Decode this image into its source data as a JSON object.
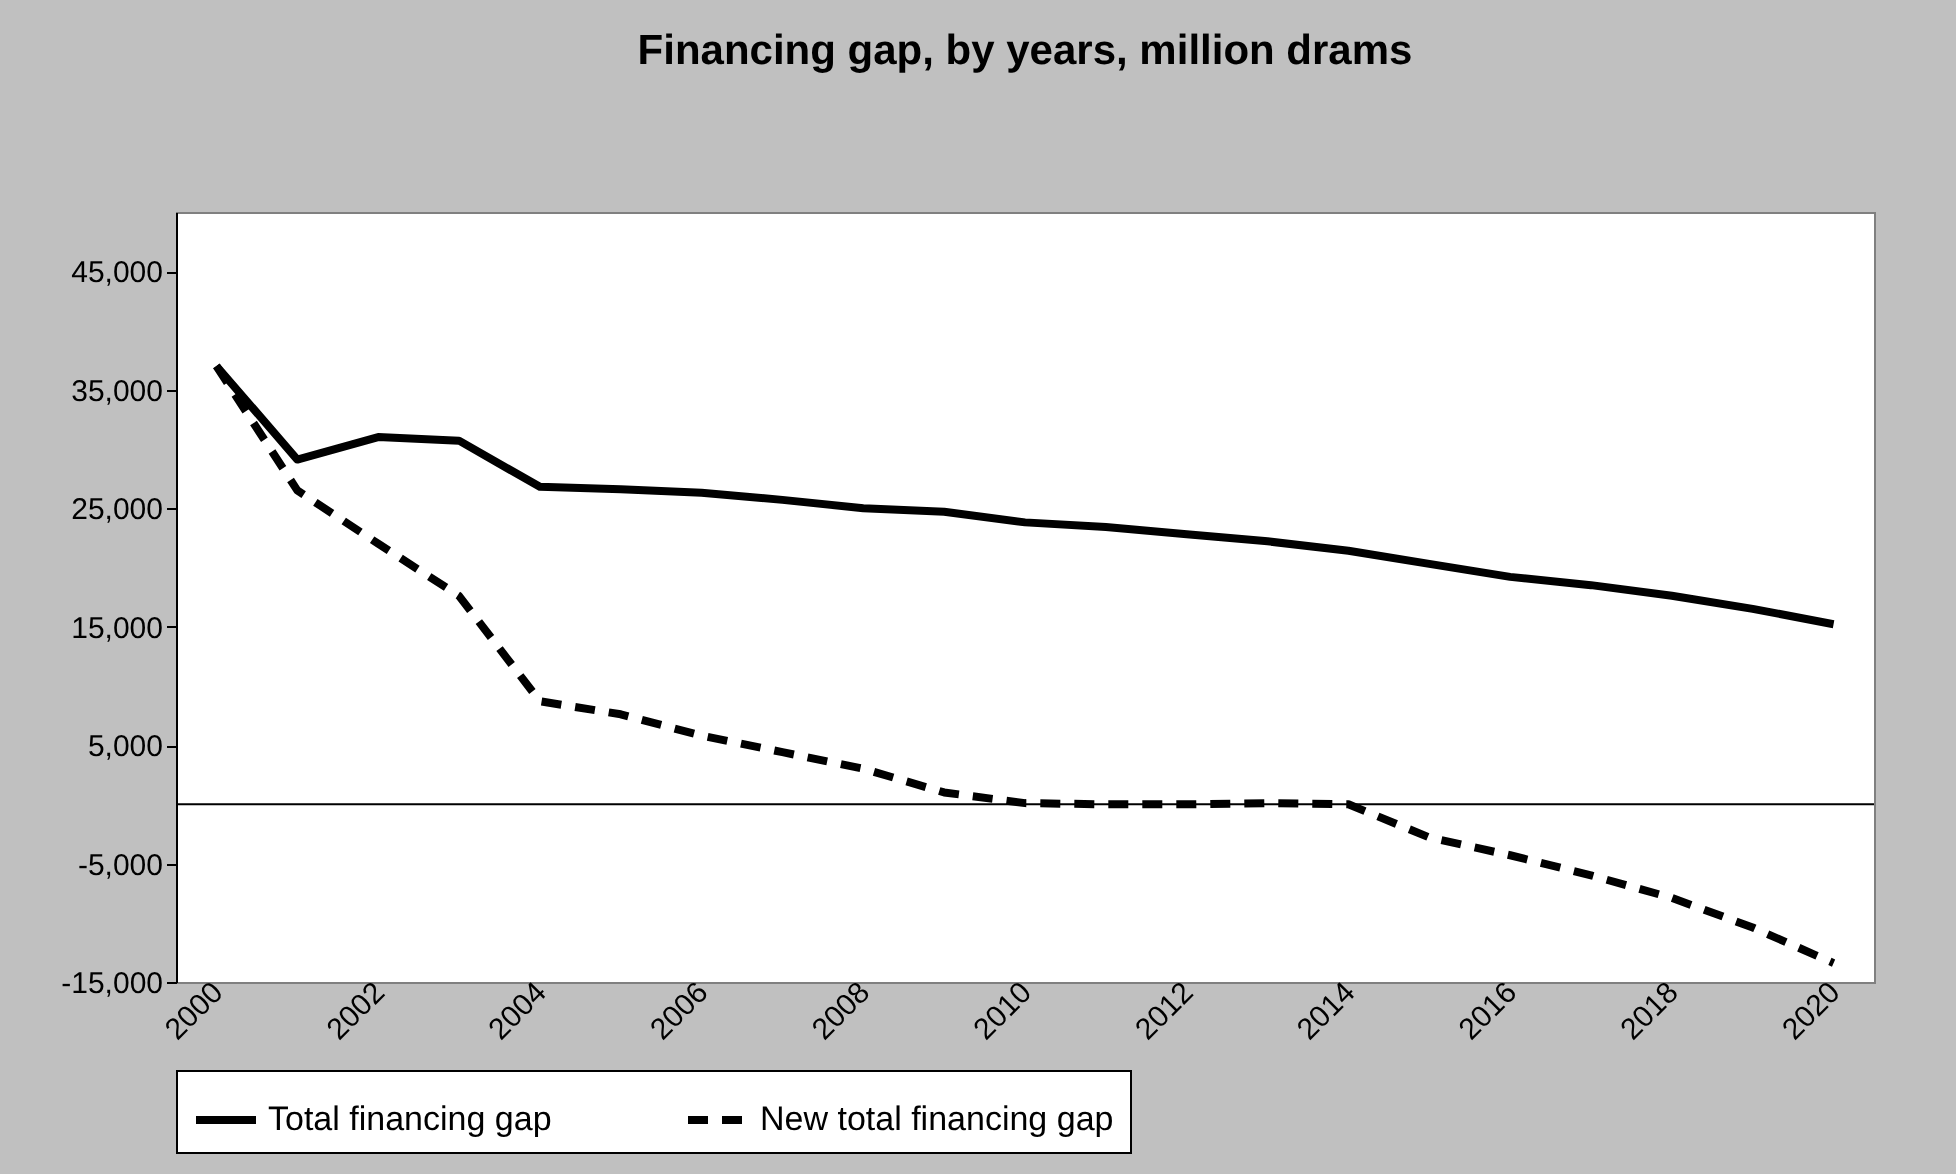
{
  "chart_data": {
    "type": "line",
    "title": "Financing gap, by years, million drams",
    "categories": [
      "2000",
      null,
      "2002",
      null,
      "2004",
      null,
      "2006",
      null,
      "2008",
      null,
      "2010",
      null,
      "2012",
      null,
      "2014",
      null,
      "2016",
      null,
      "2018",
      null,
      "2020"
    ],
    "series": [
      {
        "name": "Total financing gap",
        "color": "#000000",
        "line_style": "solid",
        "values": [
          37000,
          29100,
          31000,
          30700,
          26800,
          26600,
          26300,
          25700,
          25000,
          24700,
          23800,
          23400,
          22800,
          22200,
          21400,
          20300,
          19200,
          18500,
          17600,
          16500,
          15200
        ]
      },
      {
        "name": "New total financing gap",
        "color": "#000000",
        "line_style": "dashed",
        "values": [
          37000,
          26500,
          22000,
          17600,
          8700,
          7600,
          5800,
          4400,
          3000,
          1000,
          100,
          0,
          0,
          100,
          0,
          -2800,
          -4300,
          -6000,
          -7900,
          -10400,
          -13400
        ]
      }
    ],
    "ylim": [
      -15000,
      50000
    ],
    "yticks": [
      {
        "value": -15000,
        "label": "-15,000"
      },
      {
        "value": -5000,
        "label": "-5,000"
      },
      {
        "value": 5000,
        "label": "5,000"
      },
      {
        "value": 15000,
        "label": "15,000"
      },
      {
        "value": 25000,
        "label": "25,000"
      },
      {
        "value": 35000,
        "label": "35,000"
      },
      {
        "value": 45000,
        "label": "45,000"
      }
    ],
    "grid": false,
    "legend": "bottom",
    "marker": "none"
  }
}
